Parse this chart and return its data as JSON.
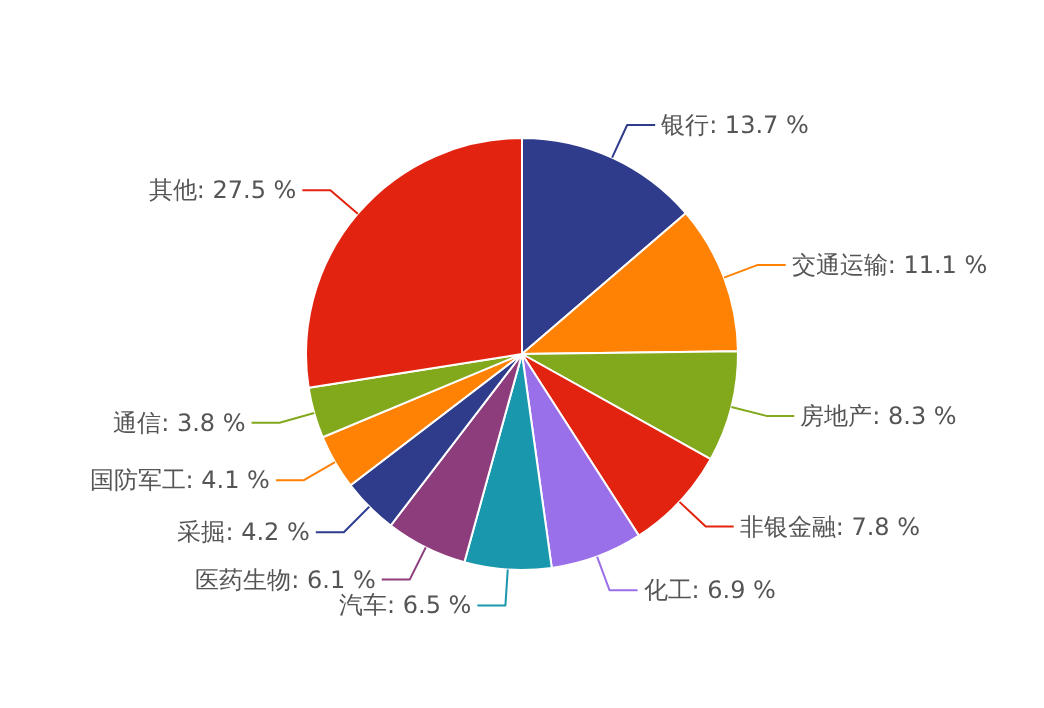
{
  "chart_data": {
    "type": "pie",
    "categories": [
      "银行",
      "交通运输",
      "房地产",
      "非银金融",
      "化工",
      "汽车",
      "医药生物",
      "采掘",
      "国防军工",
      "通信",
      "其他"
    ],
    "values": [
      13.7,
      11.1,
      8.3,
      7.8,
      6.9,
      6.5,
      6.1,
      4.2,
      4.1,
      3.8,
      27.5
    ],
    "value_labels": [
      "13.7 %",
      "11.1 %",
      "8.3 %",
      "7.8 %",
      "6.9 %",
      "6.5 %",
      "6.1 %",
      "4.2 %",
      "4.1 %",
      "3.8 %",
      "27.5 %"
    ],
    "colors": [
      "#2f3c8c",
      "#ff8205",
      "#82a81c",
      "#e2230f",
      "#9a70ea",
      "#1897ad",
      "#8d3c7c",
      "#2f3c8c",
      "#ff8205",
      "#82a81c",
      "#e2230f"
    ]
  }
}
